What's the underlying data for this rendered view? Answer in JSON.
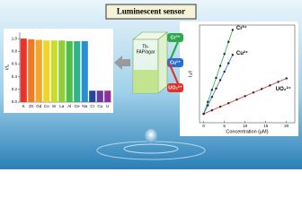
{
  "header": {
    "title": "Luminescent sensor"
  },
  "sensor_label": [
    "Tb-",
    "FAP/agar"
  ],
  "chart_data": [
    {
      "type": "bar",
      "y_label": "I/I₀",
      "categories": [
        "K",
        "Zn",
        "Gd",
        "Co",
        "Sr",
        "La",
        "Al",
        "Ce",
        "Na",
        "Cr",
        "Cu",
        "U"
      ],
      "values": [
        1.0,
        0.99,
        0.98,
        0.97,
        0.97,
        0.97,
        0.96,
        0.96,
        0.96,
        0.18,
        0.18,
        0.18
      ],
      "colors": [
        "#e8322a",
        "#f07a22",
        "#f3a62a",
        "#f2d22c",
        "#c8de2e",
        "#8fd03a",
        "#4cbf47",
        "#2fb38f",
        "#2a8fd0",
        "#23489a",
        "#6a3aa0",
        "#8e2f9c"
      ],
      "ylim": [
        0,
        1.1
      ],
      "yticks": [
        {
          "value": 0,
          "label": "0.0"
        },
        0.2,
        0.4,
        0.6,
        0.8,
        {
          "value": 1,
          "label": "1.0"
        }
      ]
    },
    {
      "type": "line",
      "x_label": "Concentration (μM)",
      "y_label": "I₀/I",
      "xlim": [
        -1,
        22
      ],
      "ylim": [
        0.8,
        3.0
      ],
      "xticks": [
        0,
        5,
        10,
        15,
        20
      ],
      "series": [
        {
          "name": "Cr³⁺",
          "color": "#2aa84a",
          "x": [
            0,
            1,
            2,
            3,
            4,
            5,
            6,
            7
          ],
          "values": [
            1.0,
            1.27,
            1.54,
            1.81,
            2.08,
            2.35,
            2.62,
            2.89
          ]
        },
        {
          "name": "Cu²⁺",
          "color": "#2a6fd0",
          "x": [
            0,
            1,
            2,
            3,
            4,
            5,
            6,
            7
          ],
          "values": [
            1.0,
            1.19,
            1.38,
            1.57,
            1.76,
            1.95,
            2.14,
            2.33
          ]
        },
        {
          "name": "UO₂²⁺",
          "color": "#e0322a",
          "x": [
            0,
            2,
            4,
            6,
            8,
            10,
            12,
            14,
            16,
            18,
            20
          ],
          "values": [
            1.0,
            1.08,
            1.16,
            1.24,
            1.32,
            1.4,
            1.48,
            1.56,
            1.64,
            1.72,
            1.8
          ]
        }
      ]
    }
  ]
}
